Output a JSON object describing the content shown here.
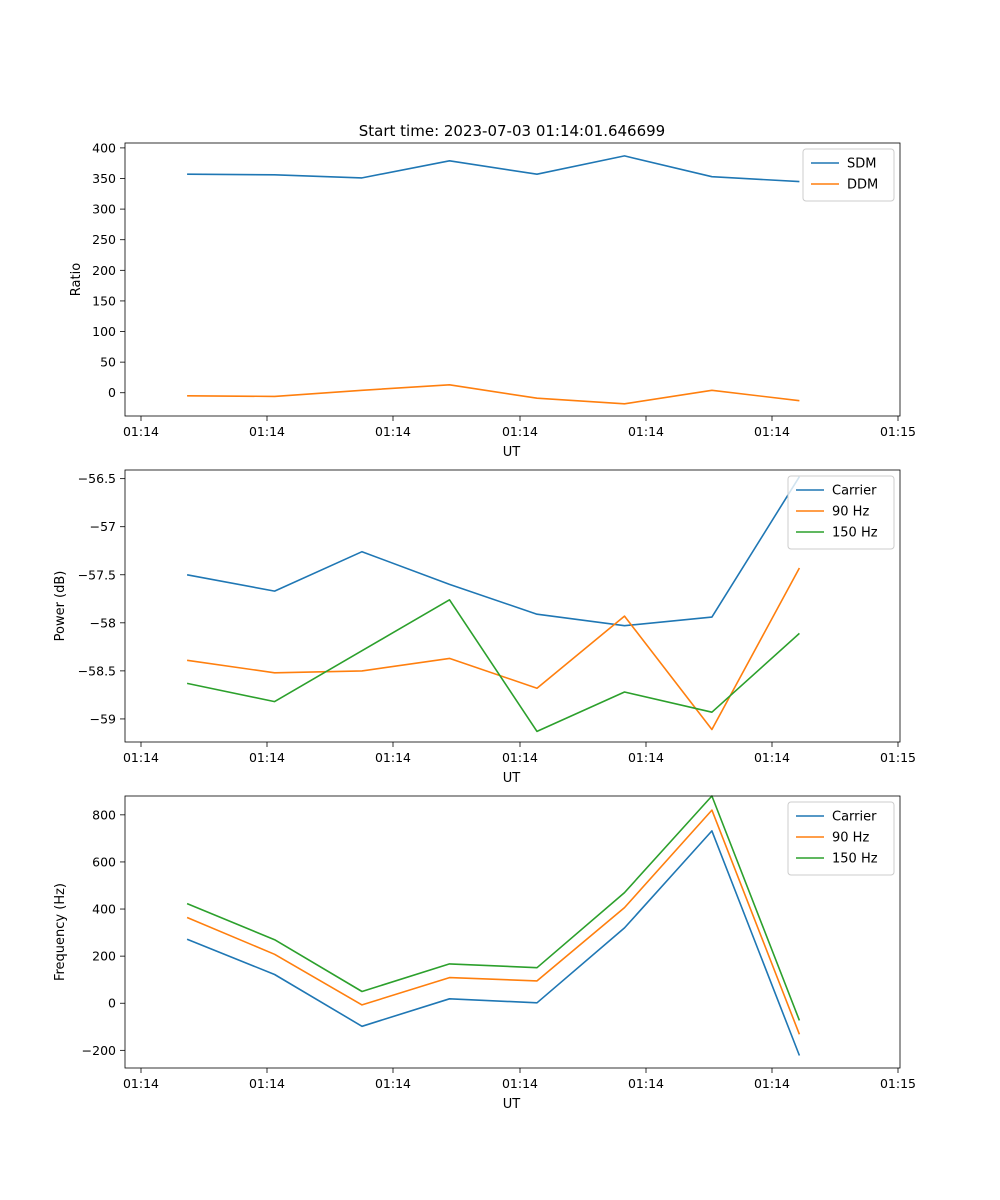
{
  "figure_title": "Start time: 2023-07-03 01:14:01.646699",
  "colors": {
    "blue": "#1f77b4",
    "orange": "#ff7f0e",
    "green": "#2ca02c"
  },
  "chart_data": [
    {
      "type": "line",
      "xlabel": "UT",
      "ylabel": "Ratio",
      "x_tick_labels": [
        "01:14",
        "01:14",
        "01:14",
        "01:14",
        "01:14",
        "01:14",
        "01:15"
      ],
      "x_positions": [
        1,
        2,
        3,
        4,
        5,
        6,
        7,
        8
      ],
      "xlim": [
        0.29,
        9.15
      ],
      "ylim": [
        -38,
        408
      ],
      "yticks": [
        0,
        50,
        100,
        150,
        200,
        250,
        300,
        350,
        400
      ],
      "legend_position": "top-right",
      "series": [
        {
          "name": "SDM",
          "color": "#1f77b4",
          "values": [
            357,
            356,
            351,
            379,
            357,
            387,
            353,
            345
          ]
        },
        {
          "name": "DDM",
          "color": "#ff7f0e",
          "values": [
            -5,
            -6,
            4,
            13,
            -9,
            -18,
            4,
            -13
          ]
        }
      ]
    },
    {
      "type": "line",
      "xlabel": "UT",
      "ylabel": "Power (dB)",
      "x_tick_labels": [
        "01:14",
        "01:14",
        "01:14",
        "01:14",
        "01:14",
        "01:14",
        "01:15"
      ],
      "x_positions": [
        1,
        2,
        3,
        4,
        5,
        6,
        7,
        8
      ],
      "xlim": [
        0.29,
        9.15
      ],
      "ylim": [
        -59.24,
        -56.41
      ],
      "yticks": [
        -59.0,
        -58.5,
        -58.0,
        -57.5,
        -57.0,
        -56.5
      ],
      "legend_position": "top-right",
      "series": [
        {
          "name": "Carrier",
          "color": "#1f77b4",
          "values": [
            -57.5,
            -57.67,
            -57.26,
            -57.6,
            -57.91,
            -58.03,
            -57.94,
            -56.48
          ]
        },
        {
          "name": "90 Hz",
          "color": "#ff7f0e",
          "values": [
            -58.39,
            -58.52,
            -58.5,
            -58.37,
            -58.68,
            -57.93,
            -59.11,
            -57.43
          ]
        },
        {
          "name": "150 Hz",
          "color": "#2ca02c",
          "values": [
            -58.63,
            -58.82,
            -58.29,
            -57.76,
            -59.13,
            -58.72,
            -58.93,
            -58.11
          ]
        }
      ]
    },
    {
      "type": "line",
      "xlabel": "UT",
      "ylabel": "Frequency (Hz)",
      "x_tick_labels": [
        "01:14",
        "01:14",
        "01:14",
        "01:14",
        "01:14",
        "01:14",
        "01:15"
      ],
      "x_positions": [
        1,
        2,
        3,
        4,
        5,
        6,
        7,
        8
      ],
      "xlim": [
        0.29,
        9.15
      ],
      "ylim": [
        -275,
        880
      ],
      "yticks": [
        -200,
        0,
        200,
        400,
        600,
        800
      ],
      "legend_position": "top-right",
      "series": [
        {
          "name": "Carrier",
          "color": "#1f77b4",
          "values": [
            272,
            122,
            -98,
            19,
            2,
            320,
            732,
            -222
          ]
        },
        {
          "name": "90 Hz",
          "color": "#ff7f0e",
          "values": [
            364,
            208,
            -7,
            109,
            95,
            406,
            820,
            -132
          ]
        },
        {
          "name": "150 Hz",
          "color": "#2ca02c",
          "values": [
            423,
            270,
            50,
            167,
            151,
            470,
            880,
            -73
          ]
        }
      ]
    }
  ]
}
